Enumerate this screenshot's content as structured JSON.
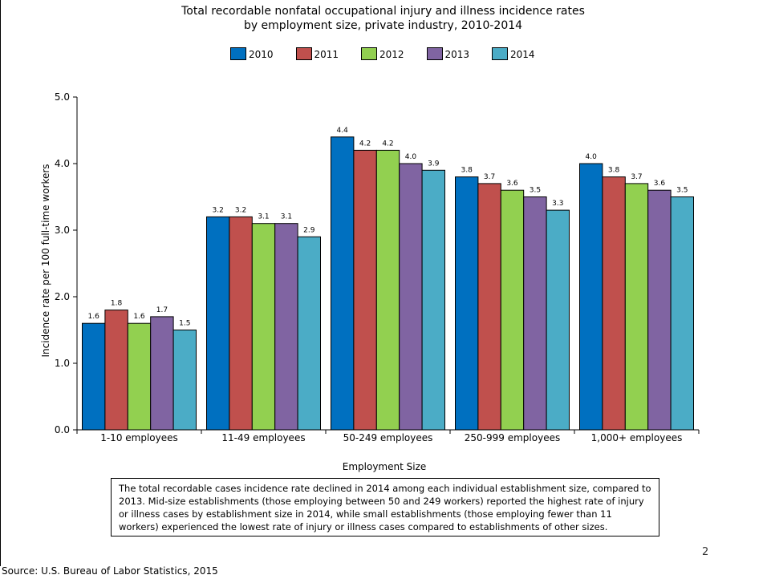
{
  "chart_data": {
    "type": "bar",
    "title": "Total recordable nonfatal occupational injury and illness incidence rates",
    "subtitle": "by employment size, private industry, 2010-2014",
    "xlabel": "Employment Size",
    "ylabel": "Incidence rate per 100 full-time workers",
    "ylim": [
      0,
      5
    ],
    "yticks": [
      "0.0",
      "1.0",
      "2.0",
      "3.0",
      "4.0",
      "5.0"
    ],
    "grid": false,
    "legend_position": "top-center",
    "categories": [
      "1-10 employees",
      "11-49 employees",
      "50-249 employees",
      "250-999 employees",
      "1,000+ employees"
    ],
    "series": [
      {
        "name": "2010",
        "color": "#0070C0",
        "values": [
          1.6,
          3.2,
          4.4,
          3.8,
          4.0
        ]
      },
      {
        "name": "2011",
        "color": "#C0504D",
        "values": [
          1.8,
          3.2,
          4.2,
          3.7,
          3.8
        ]
      },
      {
        "name": "2012",
        "color": "#92D050",
        "values": [
          1.6,
          3.1,
          4.2,
          3.6,
          3.7
        ]
      },
      {
        "name": "2013",
        "color": "#8064A2",
        "values": [
          1.7,
          3.1,
          4.0,
          3.5,
          3.6
        ]
      },
      {
        "name": "2014",
        "color": "#4BACC6",
        "values": [
          1.5,
          2.9,
          3.9,
          3.3,
          3.5
        ]
      }
    ]
  },
  "note": "The total recordable cases incidence rate declined in 2014 among each individual establishment size, compared to 2013. Mid-size establishments (those employing between 50 and 249 workers) reported the highest rate of injury or illness cases by establishment size in 2014, while small establishments (those employing fewer than 11 workers) experienced the lowest rate of injury or illness cases compared to establishments of other sizes.",
  "page_number": "2",
  "source": "Source: U.S. Bureau of Labor Statistics, 2015"
}
